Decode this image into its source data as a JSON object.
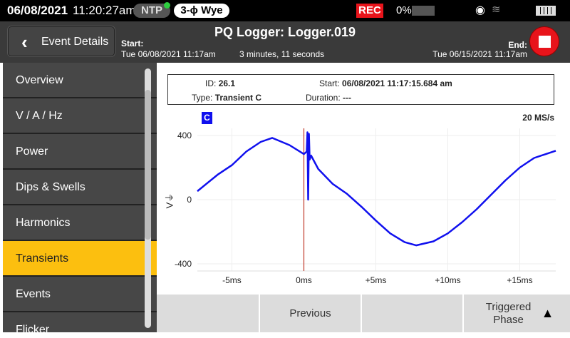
{
  "status_bar": {
    "date": "06/08/2021",
    "time": "11:20:27am",
    "ntp": "NTP",
    "wiring": "3-ϕ Wye",
    "rec": "REC",
    "memory": "0%",
    "icons": [
      "ntp-check-icon",
      "signal-icon",
      "wifi-icon",
      "battery-icon"
    ]
  },
  "header": {
    "back_label": "Event Details",
    "title": "PQ Logger: Logger.019",
    "start_label": "Start:",
    "start_value": "Tue 06/08/2021 11:17am",
    "duration": "3 minutes, 11 seconds",
    "end_label": "End:",
    "end_value": "Tue 06/15/2021 11:17am",
    "stop_icon": "stop-icon"
  },
  "sidebar": {
    "items": [
      {
        "label": "Overview"
      },
      {
        "label": "V / A / Hz"
      },
      {
        "label": "Power"
      },
      {
        "label": "Dips & Swells"
      },
      {
        "label": "Harmonics"
      },
      {
        "label": "Transients",
        "active": true
      },
      {
        "label": "Events"
      },
      {
        "label": "Flicker"
      }
    ]
  },
  "event_info": {
    "id_label": "ID:",
    "id": "26.1",
    "start_label": "Start:",
    "start": "06/08/2021 11:17:15.684 am",
    "type_label": "Type:",
    "type": "Transient C",
    "duration_label": "Duration:",
    "duration": "---"
  },
  "chart_meta": {
    "channel": "C",
    "sample_rate": "20 MS/s"
  },
  "colors": {
    "active": "#fcbf0f",
    "trace": "#1010ee",
    "trigger": "#c0392b",
    "rec": "#e8141b"
  },
  "chart_data": {
    "type": "line",
    "ylabel": "V⏚",
    "xlim": [
      -7.4,
      17.5
    ],
    "ylim": [
      -440,
      440
    ],
    "yticks": [
      400,
      0,
      -400
    ],
    "ytick_labels": [
      "400",
      "0",
      "-400"
    ],
    "xticks": [
      -5,
      0,
      5,
      10,
      15
    ],
    "xtick_labels": [
      "-5ms",
      "0ms",
      "+5ms",
      "+10ms",
      "+15ms"
    ],
    "grid": true,
    "trigger_x": 0,
    "series": [
      {
        "x": [
          -7.4,
          -6,
          -5,
          -4,
          -3,
          -2.2,
          -1,
          0,
          0.2,
          0.25,
          0.3,
          0.35,
          0.4,
          0.5,
          1,
          2,
          3,
          4,
          5,
          6,
          7,
          7.8,
          9,
          10,
          11,
          12,
          13,
          14,
          15,
          16,
          17.5
        ],
        "y": [
          53,
          155,
          215,
          300,
          360,
          385,
          340,
          284,
          300,
          420,
          0,
          410,
          250,
          275,
          191,
          98,
          36,
          -44,
          -130,
          -210,
          -265,
          -285,
          -260,
          -210,
          -140,
          -60,
          30,
          120,
          200,
          260,
          305
        ]
      }
    ]
  },
  "footer": {
    "buttons": [
      "",
      "Previous",
      "",
      "Triggered Phase"
    ]
  }
}
